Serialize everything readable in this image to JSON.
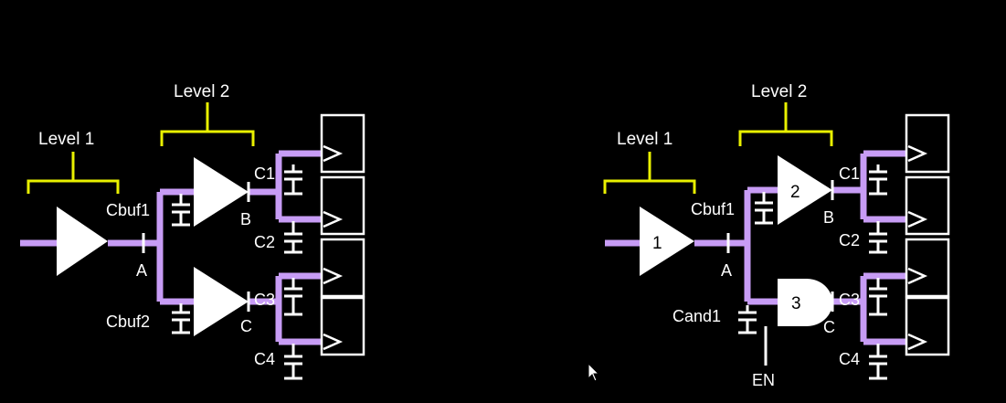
{
  "colors": {
    "background": "#000000",
    "wire": "#c79cf5",
    "brace": "#e9f000",
    "element": "#ffffff"
  },
  "left": {
    "level1": "Level 1",
    "level2": "Level 2",
    "cbuf1": "Cbuf1",
    "cbuf2": "Cbuf2",
    "node_a": "A",
    "node_b": "B",
    "node_c": "C",
    "c1": "C1",
    "c2": "C2",
    "c3": "C3",
    "c4": "C4"
  },
  "right": {
    "level1": "Level 1",
    "level2": "Level 2",
    "cbuf1": "Cbuf1",
    "cand1": "Cand1",
    "node_a": "A",
    "node_b": "B",
    "node_c": "C",
    "c1": "C1",
    "c2": "C2",
    "c3": "C3",
    "c4": "C4",
    "en": "EN",
    "gate1": "1",
    "gate2": "2",
    "gate3": "3"
  }
}
